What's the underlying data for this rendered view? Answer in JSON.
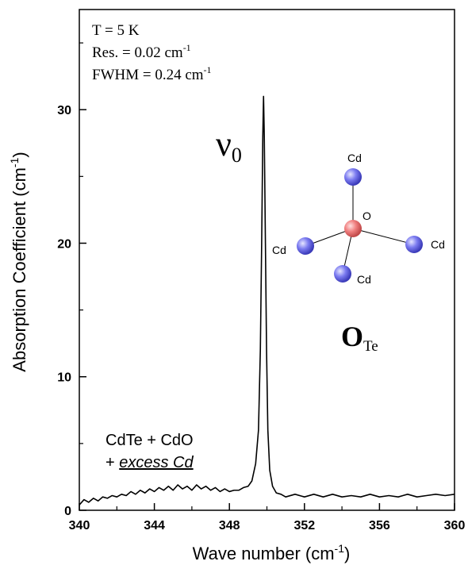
{
  "chart_data": {
    "type": "line",
    "color": "#000000",
    "annotations": [
      {
        "text": "T = 5 K"
      },
      {
        "text": "Res. = 0.02 cm",
        "sup": "-1"
      },
      {
        "text": "FWHM = 0.24 cm",
        "sup": "-1"
      }
    ],
    "peak_label": {
      "text": "ν",
      "sub": "0"
    },
    "sample_label": {
      "line1": "CdTe + CdO",
      "line2_prefix": "+ ",
      "line2_emphasis": "excess Cd"
    },
    "defect_label": {
      "text": "O",
      "sub": "Te"
    },
    "inset": {
      "center": "O",
      "ligands": [
        "Cd",
        "Cd",
        "Cd",
        "Cd"
      ]
    },
    "x_label": {
      "text": "Wave number (cm",
      "sup": "-1",
      "end": ")"
    },
    "y_label": {
      "text": "Absorption Coefficient (cm",
      "sup": "-1",
      "end": ")"
    },
    "xlim": [
      340,
      360
    ],
    "ylim": [
      0,
      37.5
    ],
    "xticks": [
      340,
      344,
      348,
      352,
      356,
      360
    ],
    "xminorticks": [
      342,
      346,
      350,
      354,
      358
    ],
    "yticks": [
      0,
      10,
      20,
      30
    ],
    "yminorticks": [
      5,
      15,
      25,
      35
    ],
    "x": [
      340,
      340.25,
      340.5,
      340.75,
      341,
      341.25,
      341.5,
      341.75,
      342,
      342.25,
      342.5,
      342.75,
      343,
      343.25,
      343.5,
      343.75,
      344,
      344.25,
      344.5,
      344.75,
      345,
      345.25,
      345.5,
      345.75,
      346,
      346.25,
      346.5,
      346.75,
      347,
      347.25,
      347.5,
      347.75,
      348,
      348.25,
      348.5,
      348.75,
      349,
      349.2,
      349.4,
      349.55,
      349.65,
      349.72,
      349.78,
      349.82,
      349.86,
      349.92,
      349.98,
      350.05,
      350.15,
      350.3,
      350.5,
      350.75,
      351,
      351.5,
      352,
      352.5,
      353,
      353.5,
      354,
      354.5,
      355,
      355.5,
      356,
      356.5,
      357,
      357.5,
      358,
      358.5,
      359,
      359.5,
      360
    ],
    "values": [
      0.4,
      0.8,
      0.6,
      0.9,
      0.7,
      1.0,
      0.9,
      1.1,
      1.0,
      1.2,
      1.1,
      1.4,
      1.2,
      1.5,
      1.3,
      1.6,
      1.4,
      1.7,
      1.5,
      1.8,
      1.5,
      1.9,
      1.6,
      1.8,
      1.5,
      1.9,
      1.6,
      1.8,
      1.5,
      1.7,
      1.4,
      1.6,
      1.4,
      1.5,
      1.5,
      1.7,
      1.8,
      2.2,
      3.5,
      6,
      12,
      20,
      28,
      31,
      28,
      20,
      12,
      6,
      3,
      1.8,
      1.3,
      1.2,
      1.0,
      1.2,
      1.0,
      1.2,
      1.0,
      1.2,
      1.0,
      1.1,
      1.0,
      1.2,
      1.0,
      1.1,
      1.0,
      1.2,
      1.0,
      1.1,
      1.2,
      1.1,
      1.2
    ]
  }
}
